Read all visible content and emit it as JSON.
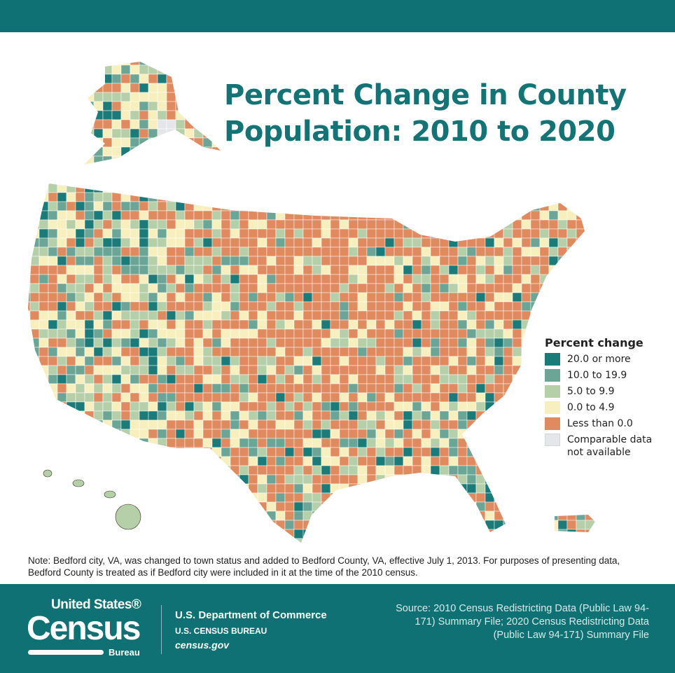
{
  "title": "Percent Change in County Population: 2010 to 2020",
  "title_lines": [
    "Percent Change in County",
    "Population: 2010 to 2020"
  ],
  "legend": {
    "title": "Percent change",
    "items": [
      {
        "label": "20.0 or more",
        "color": "#1b7b78"
      },
      {
        "label": "10.0 to 19.9",
        "color": "#6ba596"
      },
      {
        "label": "5.0 to 9.9",
        "color": "#b5cfa9"
      },
      {
        "label": "0.0 to 4.9",
        "color": "#f7efbe"
      },
      {
        "label": "Less than 0.0",
        "color": "#e08b5f"
      },
      {
        "label": "Comparable data not available",
        "color": "#e5e6ea"
      }
    ]
  },
  "note": "Note: Bedford city, VA, was changed to town status and added to Bedford County, VA, effective July 1, 2013. For purposes of presenting data, Bedford County is treated as if Bedford city were included in it at the time of the 2010 census.",
  "footer": {
    "logo": {
      "line1": "United States®",
      "line2": "Census",
      "line3": "Bureau"
    },
    "dept": "U.S. Department of Commerce",
    "bureau": "U.S. CENSUS BUREAU",
    "website": "census.gov",
    "source": "Source: 2010 Census Redistricting Data (Public Law 94-171) Summary File; 2020 Census Redistricting Data (Public Law 94-171) Summary File"
  },
  "colors": {
    "band": "#107174",
    "title": "#137375",
    "border": "#3a2a22"
  }
}
